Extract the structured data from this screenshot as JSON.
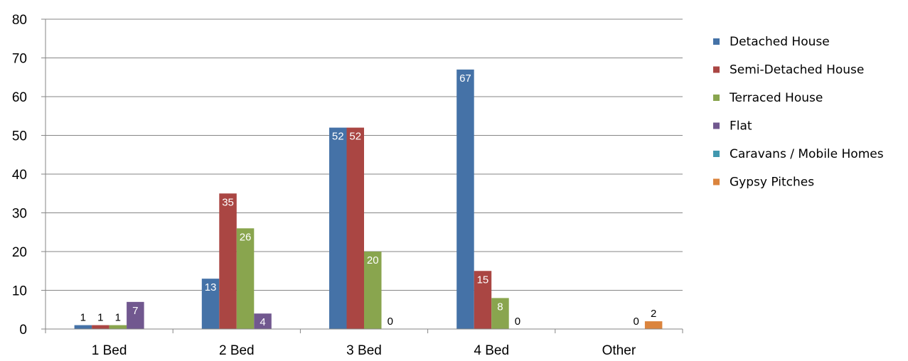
{
  "chart_data": {
    "type": "bar",
    "categories": [
      "1 Bed",
      "2 Bed",
      "3 Bed",
      "4 Bed",
      "Other"
    ],
    "series": [
      {
        "name": "Detached House",
        "color": "#4572A7",
        "values": [
          1,
          13,
          52,
          67,
          null
        ]
      },
      {
        "name": "Semi-Detached House",
        "color": "#AA4643",
        "values": [
          1,
          35,
          52,
          15,
          null
        ]
      },
      {
        "name": "Terraced House",
        "color": "#89A54E",
        "values": [
          1,
          26,
          20,
          8,
          null
        ]
      },
      {
        "name": "Flat",
        "color": "#71588F",
        "values": [
          7,
          4,
          0,
          0,
          null
        ]
      },
      {
        "name": "Caravans / Mobile Homes",
        "color": "#4198AF",
        "values": [
          null,
          null,
          null,
          null,
          0
        ]
      },
      {
        "name": "Gypsy Pitches",
        "color": "#DB843D",
        "values": [
          null,
          null,
          null,
          null,
          2
        ]
      }
    ],
    "ylim": [
      0,
      80
    ],
    "yticks": [
      0,
      10,
      20,
      30,
      40,
      50,
      60,
      70,
      80
    ],
    "grid": true,
    "legend_position": "right",
    "title": "",
    "xlabel": "",
    "ylabel": ""
  }
}
